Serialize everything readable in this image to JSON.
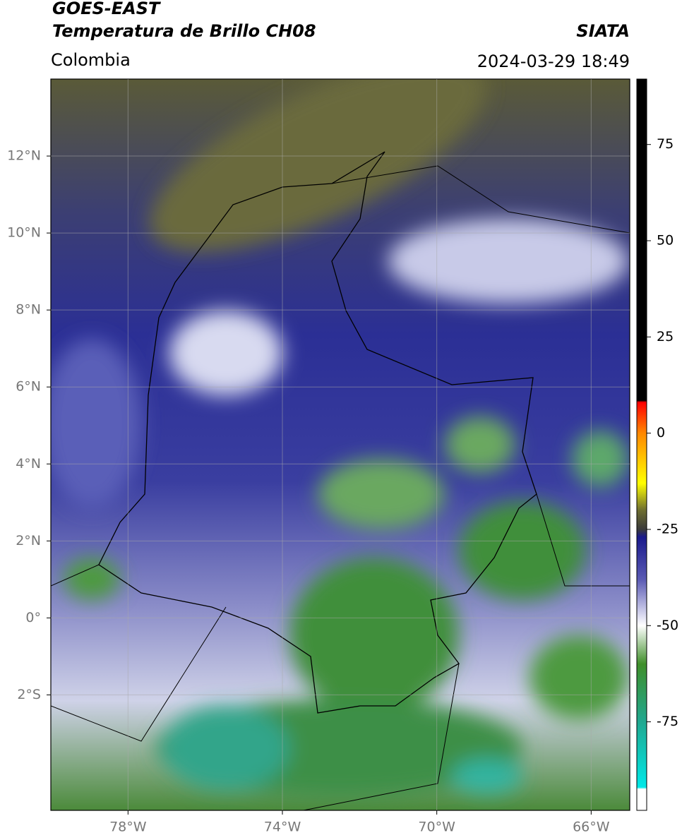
{
  "header": {
    "title": "GOES-EAST",
    "subtitle": "Temperatura de Brillo CH08",
    "source": "SIATA",
    "region": "Colombia",
    "datetime": "2024-03-29 18:49"
  },
  "map": {
    "xlim": [
      -80,
      -65
    ],
    "ylim": [
      -5,
      14
    ],
    "grid": true,
    "xticks": [
      {
        "value": -78,
        "label": "78°W"
      },
      {
        "value": -74,
        "label": "74°W"
      },
      {
        "value": -70,
        "label": "70°W"
      },
      {
        "value": -66,
        "label": "66°W"
      }
    ],
    "yticks": [
      {
        "value": 12,
        "label": "12°N"
      },
      {
        "value": 10,
        "label": "10°N"
      },
      {
        "value": 8,
        "label": "8°N"
      },
      {
        "value": 6,
        "label": "6°N"
      },
      {
        "value": 4,
        "label": "4°N"
      },
      {
        "value": 2,
        "label": "2°N"
      },
      {
        "value": 0,
        "label": "0°"
      },
      {
        "value": -2,
        "label": "2°S"
      }
    ]
  },
  "colorbar": {
    "lim": [
      -98,
      92
    ],
    "ticks": [
      75,
      50,
      25,
      0,
      -25,
      -50,
      -75
    ],
    "stops": [
      {
        "value": 92,
        "color": "#000000"
      },
      {
        "value": 8.5,
        "color": "#000000"
      },
      {
        "value": 8,
        "color": "#ff0000"
      },
      {
        "value": 0,
        "color": "#ff8800"
      },
      {
        "value": -13,
        "color": "#ffff00"
      },
      {
        "value": -20,
        "color": "#6e6e30"
      },
      {
        "value": -25,
        "color": "#3a3a3a"
      },
      {
        "value": -27,
        "color": "#1a1a8c"
      },
      {
        "value": -38,
        "color": "#5a5ab4"
      },
      {
        "value": -46,
        "color": "#c8c8e8"
      },
      {
        "value": -50,
        "color": "#ffffff"
      },
      {
        "value": -60,
        "color": "#3f8f2a"
      },
      {
        "value": -75,
        "color": "#20a890"
      },
      {
        "value": -92,
        "color": "#00e8e8"
      },
      {
        "value": -92.5,
        "color": "#ffffff"
      },
      {
        "value": -98,
        "color": "#ffffff"
      }
    ]
  }
}
